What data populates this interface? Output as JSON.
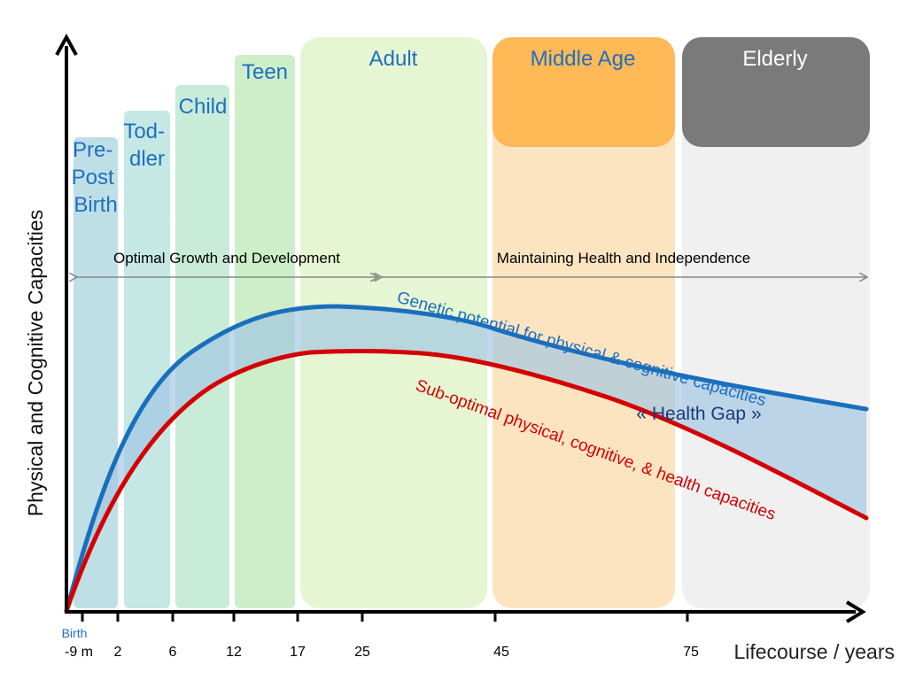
{
  "stages": [
    {
      "label_lines": [
        "Pre-",
        "Post",
        "Birth"
      ],
      "color": "#bfdfe6",
      "text_color": "#1f6fbf"
    },
    {
      "label_lines": [
        "Tod-",
        "dler"
      ],
      "color": "#c5e8e4",
      "text_color": "#1f6fbf"
    },
    {
      "label_lines": [
        "Child"
      ],
      "color": "#c8ecd8",
      "text_color": "#1f6fbf"
    },
    {
      "label_lines": [
        "Teen"
      ],
      "color": "#cdeec9",
      "text_color": "#1f6fbf"
    },
    {
      "label_lines": [
        "Adult"
      ],
      "color": "#e6f6d2",
      "text_color": "#1f6fbf"
    },
    {
      "label_lines": [
        "Middle Age"
      ],
      "color": "#fde4c1",
      "header_color": "#ffb957",
      "text_color": "#1f6fbf"
    },
    {
      "label_lines": [
        "Elderly"
      ],
      "color": "#f0f0f0",
      "header_color": "#7a7a7a",
      "text_color": "#ffffff"
    }
  ],
  "phases": {
    "growth": "Optimal Growth and Development",
    "maintaining": "Maintaining Health and Independence"
  },
  "curves": {
    "genetic_label": "Genetic potential for physical & cognitive capacities",
    "genetic_color": "#1a6fbd",
    "suboptimal_label": "Sub-optimal physical, cognitive, & health capacities",
    "suboptimal_color": "#d40000",
    "gap_label": "« Health Gap »",
    "gap_color": "#9fc4e4"
  },
  "axes": {
    "y_label": "Physical and Cognitive Capacities",
    "x_label": "Lifecourse / years",
    "birth_label": "Birth",
    "ticks": [
      "-9 m",
      "2",
      "6",
      "12",
      "17",
      "25",
      "45",
      "75"
    ]
  }
}
